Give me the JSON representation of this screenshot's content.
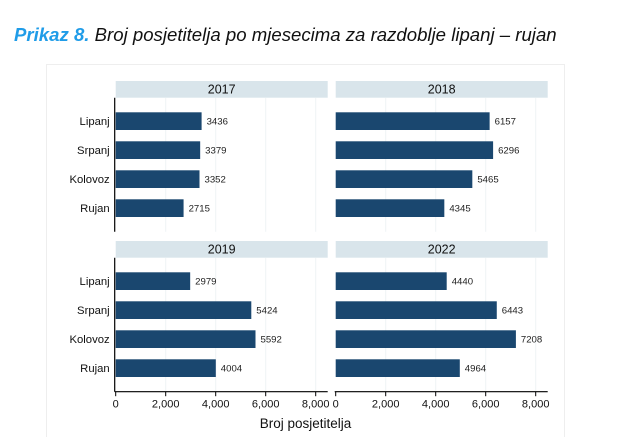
{
  "title": {
    "figure_label": "Prikaz 8.",
    "text": "Broj posjetitelja po mjesecima za razdoblje lipanj – rujan"
  },
  "colors": {
    "title_accent": "#1f9ce8",
    "bar": "#1a476f",
    "panel_header": "#d9e5eb",
    "grid": "#eef3f5",
    "frame": "#eeeeee",
    "axis": "#000000"
  },
  "chart_data": {
    "type": "bar",
    "orientation": "horizontal",
    "title": "Prikaz 8. Broj posjetitelja po mjesecima za razdoblje lipanj – rujan",
    "xlabel": "Broj posjetitelja",
    "ylabel": "",
    "xlim": [
      0,
      8480
    ],
    "xticks": [
      0,
      2000,
      4000,
      6000,
      8000
    ],
    "xtick_labels": [
      "0",
      "2,000",
      "4,000",
      "6,000",
      "8,000"
    ],
    "grid": true,
    "legend": "none",
    "categories": [
      "Lipanj",
      "Srpanj",
      "Kolovoz",
      "Rujan"
    ],
    "series": [
      {
        "name": "2017",
        "values": [
          3436,
          3379,
          3352,
          2715
        ]
      },
      {
        "name": "2018",
        "values": [
          6157,
          6296,
          5465,
          4345
        ]
      },
      {
        "name": "2019",
        "values": [
          2979,
          5424,
          5592,
          4004
        ]
      },
      {
        "name": "2022",
        "values": [
          4440,
          6443,
          7208,
          4964
        ]
      }
    ]
  }
}
